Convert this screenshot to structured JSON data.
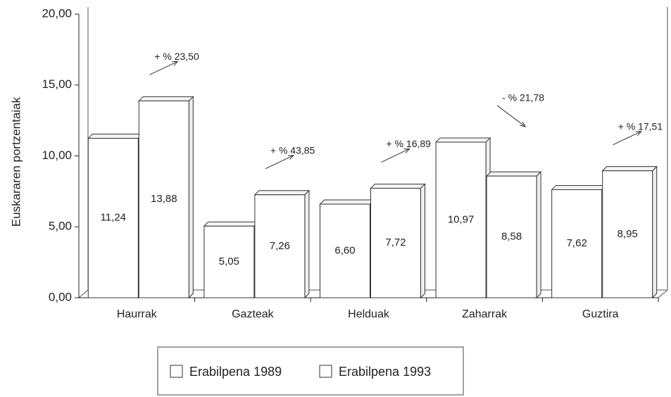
{
  "chart_data": {
    "type": "bar",
    "y_label": "Euskararen portzentaiak",
    "categories": [
      "Haurrak",
      "Gazteak",
      "Helduak",
      "Zaharrak",
      "Guztira"
    ],
    "series": [
      {
        "name": "Erabilpena 1989",
        "color": "#ffffff",
        "values": [
          11.24,
          5.05,
          6.6,
          10.97,
          7.62
        ],
        "value_labels": [
          "11,24",
          "5,05",
          "6,60",
          "10,97",
          "7,62"
        ]
      },
      {
        "name": "Erabilpena 1993",
        "color": "#ffffff",
        "values": [
          13.88,
          7.26,
          7.72,
          8.58,
          8.95
        ],
        "value_labels": [
          "13,88",
          "7,26",
          "7,72",
          "8,58",
          "8,95"
        ]
      }
    ],
    "annotations": [
      "+ % 23,50",
      "+ % 43,85",
      "+ % 16,89",
      "- % 21,78",
      "+ % 17,51"
    ],
    "ylim": [
      0,
      20
    ],
    "yticks": [
      {
        "value": 0,
        "label": "0,00"
      },
      {
        "value": 5,
        "label": "5,00"
      },
      {
        "value": 10,
        "label": "10,00"
      },
      {
        "value": 15,
        "label": "15,00"
      },
      {
        "value": 20,
        "label": "20,00"
      }
    ],
    "grid": false,
    "legend": "bottom"
  }
}
